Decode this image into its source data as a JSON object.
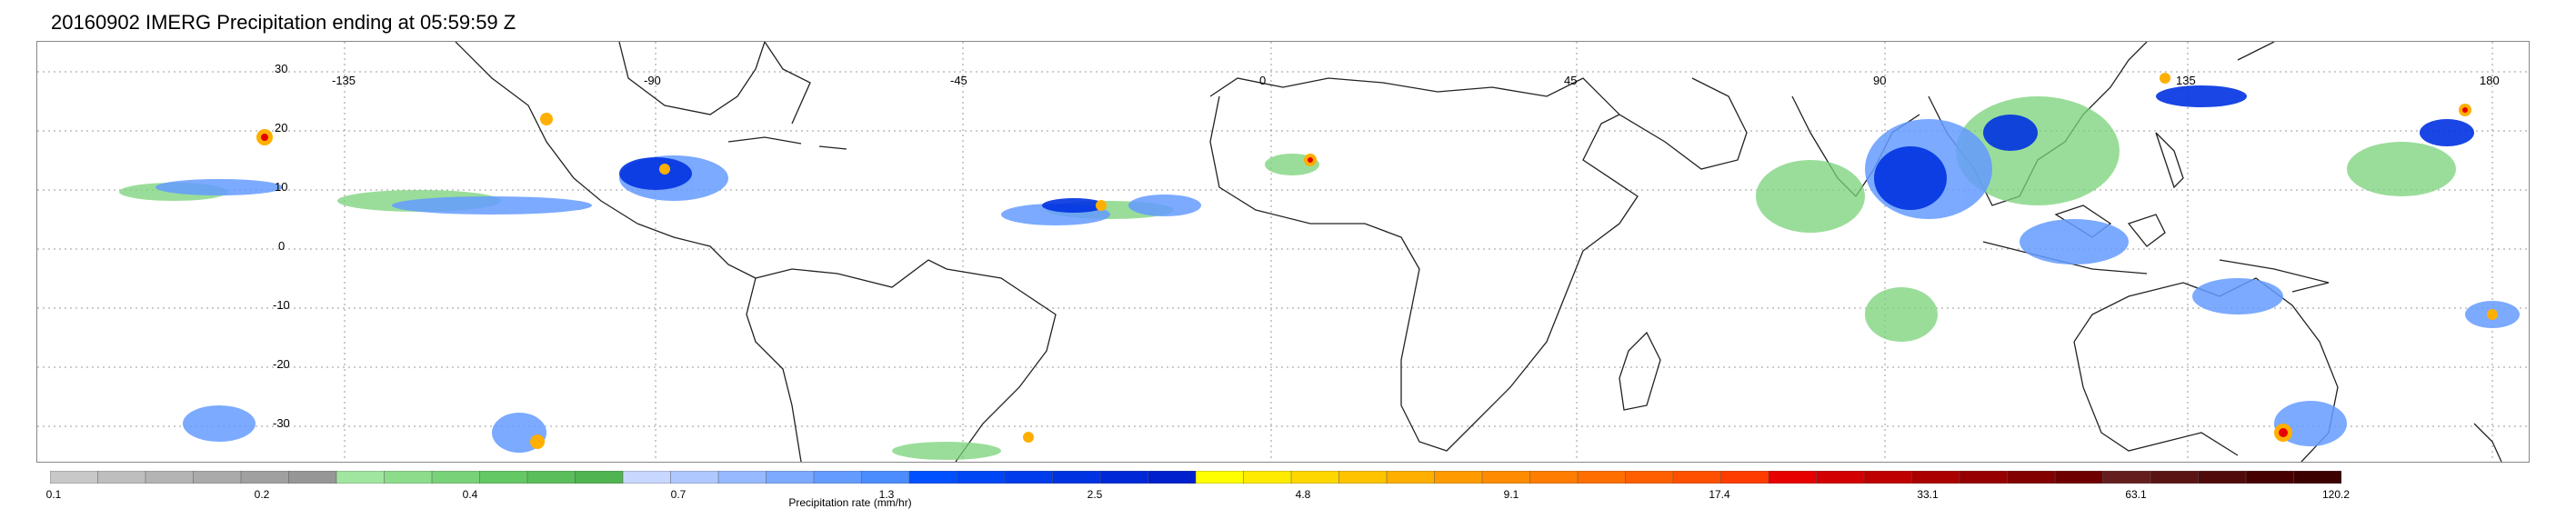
{
  "title": "20160902 IMERG Precipitation ending at 05:59:59 Z",
  "lon_labels": [
    "-135",
    "-90",
    "-45",
    "0",
    "45",
    "90",
    "135",
    "180"
  ],
  "lat_labels": [
    "30",
    "20",
    "10",
    "0",
    "-10",
    "-20",
    "-30"
  ],
  "colorbar": {
    "title": "Precipitation rate (mm/hr)",
    "tick_labels": [
      "0.1",
      "0.2",
      "0.4",
      "0.7",
      "1.3",
      "2.5",
      "4.8",
      "9.1",
      "17.4",
      "33.1",
      "63.1",
      "120.2"
    ],
    "colors": [
      "#c8c8c8",
      "#bebebe",
      "#b4b4b4",
      "#aaaaaa",
      "#a0a0a0",
      "#969696",
      "#a0e6a0",
      "#8cdc8c",
      "#78d278",
      "#64c864",
      "#5abe5a",
      "#50b450",
      "#c8d7ff",
      "#afc8ff",
      "#96b9ff",
      "#7daaff",
      "#649bff",
      "#4b8cff",
      "#0050ff",
      "#0046f5",
      "#003ceb",
      "#0032e1",
      "#0028d7",
      "#0020cd",
      "#ffff00",
      "#ffeb00",
      "#ffd700",
      "#ffc300",
      "#ffaf00",
      "#ff9b00",
      "#ff8c00",
      "#ff7d00",
      "#ff6e00",
      "#ff5f00",
      "#ff5000",
      "#ff3c00",
      "#e60000",
      "#d20000",
      "#be0000",
      "#aa0000",
      "#960000",
      "#820000",
      "#6e0000",
      "#641e1e",
      "#5a1414",
      "#500a0a",
      "#460000",
      "#3c0000"
    ]
  }
}
